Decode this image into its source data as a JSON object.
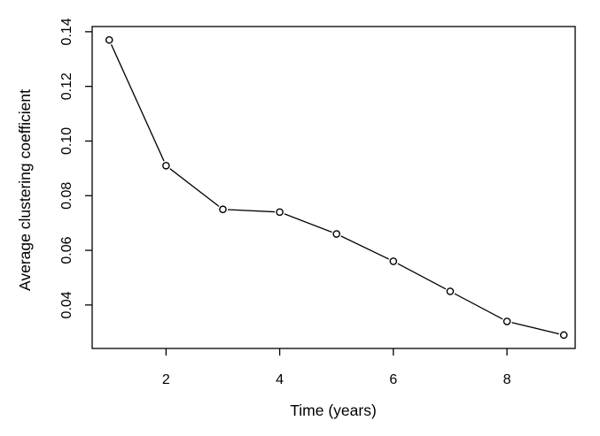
{
  "figure": {
    "background": "#ffffff",
    "foreground": "#000000"
  },
  "chart_data": {
    "type": "line",
    "title": "",
    "xlabel": "Time (years)",
    "ylabel": "Average clustering coefficient",
    "x": [
      1,
      2,
      3,
      4,
      5,
      6,
      7,
      8,
      9
    ],
    "y": [
      0.137,
      0.091,
      0.075,
      0.074,
      0.066,
      0.056,
      0.045,
      0.034,
      0.029
    ],
    "series_name": "Average clustering coefficient over time",
    "x_ticks": [
      2,
      4,
      6,
      8
    ],
    "x_tick_labels": [
      "2",
      "4",
      "6",
      "8"
    ],
    "y_ticks": [
      0.04,
      0.06,
      0.08,
      0.1,
      0.12,
      0.14
    ],
    "y_tick_labels": [
      "0.04",
      "0.06",
      "0.08",
      "0.10",
      "0.12",
      "0.14"
    ],
    "xlim": [
      0.7,
      9.2
    ],
    "ylim": [
      0.0241,
      0.1419
    ],
    "marker": "open-circle",
    "line_color": "#000000",
    "marker_color": "#000000",
    "grid": false,
    "legend": null,
    "frame": "full-box"
  }
}
